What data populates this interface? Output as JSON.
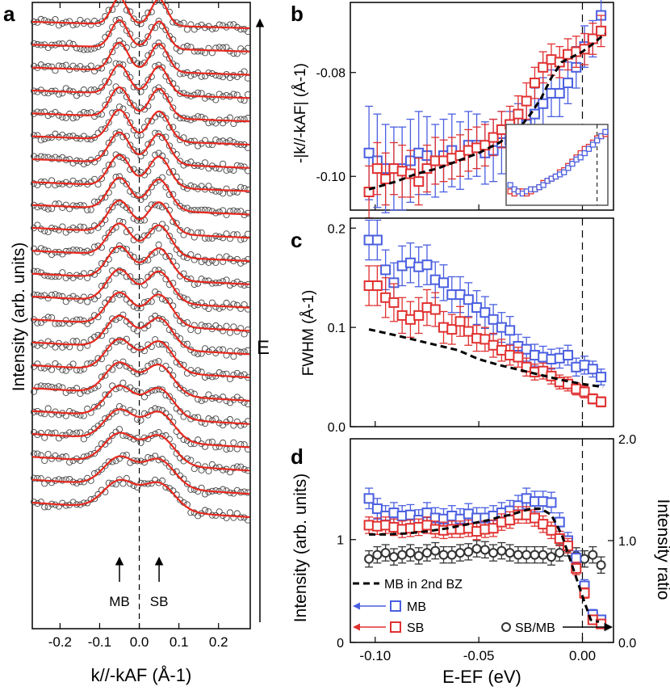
{
  "colors": {
    "mb": "#4a5fe0",
    "sb": "#e03131",
    "ratio": "#333333",
    "fit": "#e8281e",
    "data": "#444444",
    "frame": "#000000"
  },
  "chart_data": [
    {
      "panel": "a",
      "type": "line",
      "xlabel": "k//-kAF (Å-1)",
      "ylabel": "Intensity (arb. units)",
      "xlim": [
        -0.27,
        0.28
      ],
      "xticks": [
        "-0.2",
        "-0.1",
        "0.0",
        "0.1",
        "0.2"
      ],
      "xtick_values": [
        -0.2,
        -0.1,
        0.0,
        0.1,
        0.2
      ],
      "energy_arrow_label": "E",
      "annotations": [
        {
          "text": "MB",
          "x": -0.05
        },
        {
          "text": "SB",
          "x": 0.05
        }
      ],
      "curve_count": 22,
      "peak_positions": [
        -0.05,
        0.05
      ],
      "description_series": "momentum distribution curves (open circles) with red fits, stacked with energy increasing upward"
    },
    {
      "panel": "b",
      "type": "scatter",
      "ylabel": "-|k//-kAF| (Å-1)",
      "xlim": [
        -0.112,
        0.015
      ],
      "ylim": [
        -0.1065,
        -0.0665
      ],
      "yticks": [
        "-0.08",
        "-0.10"
      ],
      "ytick_values": [
        -0.08,
        -0.1
      ],
      "series": [
        {
          "name": "MB",
          "x": [
            -0.103,
            -0.099,
            -0.095,
            -0.091,
            -0.087,
            -0.083,
            -0.079,
            -0.075,
            -0.071,
            -0.067,
            -0.063,
            -0.059,
            -0.055,
            -0.051,
            -0.047,
            -0.043,
            -0.039,
            -0.035,
            -0.031,
            -0.027,
            -0.023,
            -0.019,
            -0.015,
            -0.011,
            -0.007,
            -0.003,
            0.001,
            0.005,
            0.009
          ],
          "values": [
            -0.0955,
            -0.097,
            -0.0985,
            -0.0985,
            -0.0985,
            -0.097,
            -0.0955,
            -0.096,
            -0.097,
            -0.096,
            -0.095,
            -0.096,
            -0.094,
            -0.094,
            -0.0955,
            -0.095,
            -0.0935,
            -0.093,
            -0.0915,
            -0.09,
            -0.088,
            -0.086,
            -0.084,
            -0.084,
            -0.082,
            -0.079,
            -0.075,
            -0.0735,
            -0.069
          ],
          "err": [
            0.009,
            0.009,
            0.0085,
            0.008,
            0.008,
            0.008,
            0.008,
            0.0075,
            0.007,
            0.007,
            0.007,
            0.0065,
            0.0065,
            0.006,
            0.006,
            0.006,
            0.006,
            0.0055,
            0.0055,
            0.005,
            0.005,
            0.005,
            0.0045,
            0.0045,
            0.004,
            0.004,
            0.004,
            0.0035,
            0.0035
          ]
        },
        {
          "name": "SB",
          "x": [
            -0.103,
            -0.099,
            -0.095,
            -0.091,
            -0.087,
            -0.083,
            -0.079,
            -0.075,
            -0.071,
            -0.067,
            -0.063,
            -0.059,
            -0.055,
            -0.051,
            -0.047,
            -0.043,
            -0.039,
            -0.035,
            -0.031,
            -0.027,
            -0.023,
            -0.019,
            -0.015,
            -0.011,
            -0.007,
            -0.003,
            0.001,
            0.005,
            0.009
          ],
          "values": [
            -0.103,
            -0.0985,
            -0.1005,
            -0.0985,
            -0.099,
            -0.0995,
            -0.101,
            -0.0985,
            -0.097,
            -0.097,
            -0.0965,
            -0.096,
            -0.095,
            -0.0945,
            -0.094,
            -0.0925,
            -0.091,
            -0.09,
            -0.088,
            -0.0855,
            -0.082,
            -0.079,
            -0.0775,
            -0.078,
            -0.0765,
            -0.076,
            -0.0755,
            -0.0735,
            -0.072
          ],
          "err": [
            0.005,
            0.005,
            0.005,
            0.005,
            0.005,
            0.0045,
            0.0045,
            0.0045,
            0.0045,
            0.004,
            0.004,
            0.004,
            0.004,
            0.004,
            0.004,
            0.0035,
            0.0035,
            0.0035,
            0.0035,
            0.0035,
            0.003,
            0.003,
            0.003,
            0.003,
            0.003,
            0.003,
            0.003,
            0.003,
            0.003
          ]
        },
        {
          "name": "MB in 2nd BZ",
          "style": "dashed",
          "x": [
            -0.103,
            -0.09,
            -0.08,
            -0.07,
            -0.06,
            -0.05,
            -0.04,
            -0.035,
            -0.03,
            -0.025,
            -0.02,
            -0.015,
            -0.01,
            -0.005,
            0.0,
            0.005,
            0.011
          ],
          "values": [
            -0.1025,
            -0.101,
            -0.0995,
            -0.0985,
            -0.097,
            -0.0955,
            -0.0935,
            -0.092,
            -0.0905,
            -0.088,
            -0.085,
            -0.081,
            -0.078,
            -0.077,
            -0.076,
            -0.0745,
            -0.0725
          ]
        }
      ],
      "vline_x": 0.0,
      "inset": true
    },
    {
      "panel": "c",
      "type": "scatter",
      "ylabel": "FWHM (Å-1)",
      "xlim": [
        -0.112,
        0.015
      ],
      "ylim": [
        0.0,
        0.2
      ],
      "yticks": [
        "0.2",
        "0.1",
        "0.0"
      ],
      "ytick_values": [
        0.2,
        0.1,
        0.0
      ],
      "series": [
        {
          "name": "MB",
          "x": [
            -0.103,
            -0.099,
            -0.095,
            -0.091,
            -0.087,
            -0.083,
            -0.079,
            -0.075,
            -0.071,
            -0.067,
            -0.063,
            -0.059,
            -0.055,
            -0.051,
            -0.047,
            -0.043,
            -0.039,
            -0.035,
            -0.031,
            -0.027,
            -0.023,
            -0.019,
            -0.015,
            -0.011,
            -0.007,
            -0.003,
            0.001,
            0.005,
            0.009
          ],
          "values": [
            0.188,
            0.188,
            0.158,
            0.145,
            0.162,
            0.165,
            0.161,
            0.163,
            0.148,
            0.145,
            0.133,
            0.133,
            0.128,
            0.12,
            0.115,
            0.108,
            0.1,
            0.097,
            0.081,
            0.078,
            0.072,
            0.07,
            0.068,
            0.069,
            0.072,
            0.06,
            0.062,
            0.058,
            0.05
          ],
          "err": [
            0.02,
            0.02,
            0.02,
            0.02,
            0.02,
            0.02,
            0.02,
            0.02,
            0.018,
            0.018,
            0.018,
            0.018,
            0.017,
            0.017,
            0.016,
            0.015,
            0.015,
            0.014,
            0.012,
            0.012,
            0.011,
            0.011,
            0.01,
            0.01,
            0.01,
            0.009,
            0.009,
            0.008,
            0.008
          ]
        },
        {
          "name": "SB",
          "x": [
            -0.103,
            -0.099,
            -0.095,
            -0.091,
            -0.087,
            -0.083,
            -0.079,
            -0.075,
            -0.071,
            -0.067,
            -0.063,
            -0.059,
            -0.055,
            -0.051,
            -0.047,
            -0.043,
            -0.039,
            -0.035,
            -0.031,
            -0.027,
            -0.023,
            -0.019,
            -0.015,
            -0.011,
            -0.007,
            -0.003,
            0.001,
            0.005,
            0.009
          ],
          "values": [
            0.142,
            0.142,
            0.13,
            0.125,
            0.112,
            0.108,
            0.112,
            0.12,
            0.118,
            0.1,
            0.098,
            0.106,
            0.096,
            0.089,
            0.088,
            0.082,
            0.077,
            0.072,
            0.07,
            0.06,
            0.055,
            0.056,
            0.051,
            0.045,
            0.043,
            0.038,
            0.035,
            0.028,
            0.025
          ],
          "err": [
            0.02,
            0.02,
            0.02,
            0.019,
            0.018,
            0.018,
            0.018,
            0.018,
            0.017,
            0.016,
            0.015,
            0.015,
            0.014,
            0.013,
            0.012,
            0.012,
            0.011,
            0.01,
            0.01,
            0.009,
            0.008,
            0.008,
            0.008,
            0.007,
            0.007,
            0.006,
            0.006,
            0.005,
            0.005
          ]
        },
        {
          "name": "MB in 2nd BZ",
          "style": "dashed",
          "x": [
            -0.103,
            -0.09,
            -0.08,
            -0.07,
            -0.06,
            -0.05,
            -0.04,
            -0.03,
            -0.02,
            -0.01,
            0.0,
            0.01
          ],
          "values": [
            0.098,
            0.092,
            0.087,
            0.082,
            0.077,
            0.068,
            0.062,
            0.057,
            0.052,
            0.047,
            0.043,
            0.04
          ]
        }
      ],
      "vline_x": 0.0
    },
    {
      "panel": "d",
      "type": "scatter",
      "xlabel": "E-EF (eV)",
      "ylabel": "Intensity (arb. units)",
      "ylabel_right": "Intensity ratio",
      "xlim": [
        -0.112,
        0.015
      ],
      "ylim": [
        0,
        1.98
      ],
      "ylim_right": [
        0.0,
        2.0
      ],
      "xticks": [
        "-0.10",
        "-0.05",
        "0.00"
      ],
      "xtick_values": [
        -0.1,
        -0.05,
        0.0
      ],
      "yticks": [
        "0",
        "1"
      ],
      "ytick_values": [
        0,
        1
      ],
      "yticks_right": [
        "2.0",
        "1.0",
        "0.0"
      ],
      "ytick_values_right": [
        2.0,
        1.0,
        0.0
      ],
      "series": [
        {
          "name": "MB",
          "x": [
            -0.103,
            -0.099,
            -0.095,
            -0.091,
            -0.087,
            -0.083,
            -0.079,
            -0.075,
            -0.071,
            -0.067,
            -0.063,
            -0.059,
            -0.055,
            -0.051,
            -0.047,
            -0.043,
            -0.039,
            -0.035,
            -0.031,
            -0.027,
            -0.023,
            -0.019,
            -0.015,
            -0.011,
            -0.007,
            -0.003,
            0.001,
            0.005,
            0.009
          ],
          "values": [
            1.4,
            1.3,
            1.23,
            1.26,
            1.23,
            1.24,
            1.19,
            1.26,
            1.21,
            1.2,
            1.23,
            1.2,
            1.25,
            1.21,
            1.21,
            1.23,
            1.26,
            1.28,
            1.33,
            1.4,
            1.37,
            1.37,
            1.36,
            1.17,
            0.99,
            0.82,
            0.55,
            0.27,
            0.22
          ],
          "err": [
            0.1,
            0.1,
            0.1,
            0.1,
            0.1,
            0.1,
            0.1,
            0.1,
            0.1,
            0.1,
            0.1,
            0.1,
            0.1,
            0.1,
            0.1,
            0.1,
            0.1,
            0.1,
            0.1,
            0.1,
            0.1,
            0.1,
            0.1,
            0.09,
            0.08,
            0.07,
            0.06,
            0.05,
            0.04
          ]
        },
        {
          "name": "SB",
          "x": [
            -0.103,
            -0.099,
            -0.095,
            -0.091,
            -0.087,
            -0.083,
            -0.079,
            -0.075,
            -0.071,
            -0.067,
            -0.063,
            -0.059,
            -0.055,
            -0.051,
            -0.047,
            -0.043,
            -0.039,
            -0.035,
            -0.031,
            -0.027,
            -0.023,
            -0.019,
            -0.015,
            -0.011,
            -0.007,
            -0.003,
            0.001,
            0.005,
            0.009
          ],
          "values": [
            1.14,
            1.13,
            1.14,
            1.12,
            1.1,
            1.11,
            1.12,
            1.14,
            1.1,
            1.09,
            1.1,
            1.1,
            1.11,
            1.08,
            1.1,
            1.11,
            1.17,
            1.19,
            1.24,
            1.24,
            1.21,
            1.15,
            1.09,
            1.01,
            0.94,
            0.72,
            0.48,
            0.22,
            0.18
          ],
          "err": [
            0.08,
            0.08,
            0.08,
            0.08,
            0.08,
            0.08,
            0.08,
            0.08,
            0.08,
            0.08,
            0.08,
            0.08,
            0.08,
            0.08,
            0.08,
            0.08,
            0.08,
            0.08,
            0.08,
            0.08,
            0.08,
            0.08,
            0.08,
            0.07,
            0.07,
            0.06,
            0.05,
            0.04,
            0.04
          ]
        },
        {
          "name": "SB/MB",
          "axis": "right",
          "x": [
            -0.103,
            -0.099,
            -0.095,
            -0.091,
            -0.087,
            -0.083,
            -0.079,
            -0.075,
            -0.071,
            -0.067,
            -0.063,
            -0.059,
            -0.055,
            -0.051,
            -0.047,
            -0.043,
            -0.039,
            -0.035,
            -0.031,
            -0.027,
            -0.023,
            -0.019,
            -0.015,
            -0.011,
            -0.007,
            -0.003,
            0.001,
            0.005,
            0.009
          ],
          "values": [
            0.82,
            0.86,
            0.88,
            0.84,
            0.86,
            0.88,
            0.85,
            0.88,
            0.9,
            0.86,
            0.86,
            0.88,
            0.89,
            0.92,
            0.91,
            0.88,
            0.9,
            0.88,
            0.86,
            0.86,
            0.86,
            0.86,
            0.84,
            0.88,
            0.93,
            0.85,
            0.82,
            0.86,
            0.76
          ],
          "err": [
            0.08,
            0.08,
            0.08,
            0.08,
            0.08,
            0.08,
            0.08,
            0.08,
            0.08,
            0.08,
            0.08,
            0.08,
            0.08,
            0.08,
            0.08,
            0.08,
            0.08,
            0.08,
            0.08,
            0.08,
            0.08,
            0.08,
            0.08,
            0.08,
            0.08,
            0.08,
            0.08,
            0.08,
            0.08
          ]
        },
        {
          "name": "MB in 2nd BZ",
          "style": "dashed",
          "x": [
            -0.103,
            -0.095,
            -0.085,
            -0.075,
            -0.065,
            -0.055,
            -0.045,
            -0.04,
            -0.035,
            -0.03,
            -0.025,
            -0.02,
            -0.015,
            -0.01,
            -0.005,
            0.0,
            0.004,
            0.008
          ],
          "values": [
            1.05,
            1.05,
            1.06,
            1.08,
            1.11,
            1.15,
            1.19,
            1.22,
            1.24,
            1.27,
            1.3,
            1.3,
            1.24,
            1.05,
            0.75,
            0.45,
            0.22,
            0.2
          ]
        }
      ],
      "vline_x": 0.0,
      "legend": [
        {
          "label": "MB in 2nd BZ",
          "style": "dashed"
        },
        {
          "label": "MB",
          "marker": "square",
          "color": "mb"
        },
        {
          "label": "SB",
          "marker": "square",
          "color": "sb"
        },
        {
          "label": "SB/MB",
          "marker": "circle",
          "color": "ratio"
        }
      ]
    }
  ],
  "panel_labels": {
    "a": "a",
    "b": "b",
    "c": "c",
    "d": "d"
  }
}
